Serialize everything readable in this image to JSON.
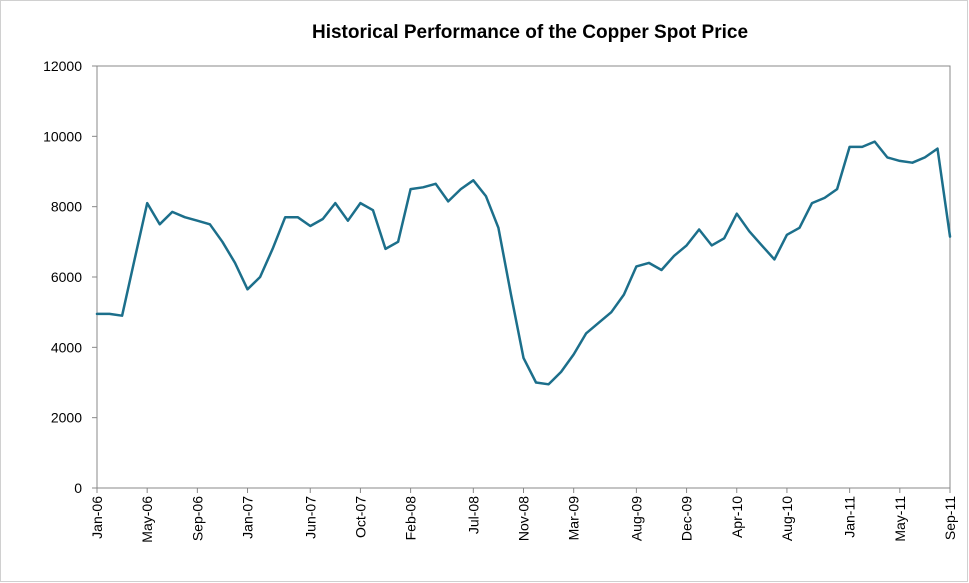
{
  "chart_data": {
    "type": "line",
    "title": "Historical Performance of the Copper Spot Price",
    "categories": [
      "Jan-06",
      null,
      null,
      null,
      "May-06",
      null,
      null,
      null,
      "Sep-06",
      null,
      null,
      null,
      "Jan-07",
      null,
      null,
      null,
      null,
      "Jun-07",
      null,
      null,
      null,
      "Oct-07",
      null,
      null,
      null,
      "Feb-08",
      null,
      null,
      null,
      null,
      "Jul-08",
      null,
      null,
      null,
      "Nov-08",
      null,
      null,
      null,
      "Mar-09",
      null,
      null,
      null,
      null,
      "Aug-09",
      null,
      null,
      null,
      "Dec-09",
      null,
      null,
      null,
      "Apr-10",
      null,
      null,
      null,
      "Aug-10",
      null,
      null,
      null,
      null,
      "Jan-11",
      null,
      null,
      null,
      "May-11",
      null,
      null,
      null,
      "Sep-11"
    ],
    "series": [
      {
        "name": "Copper Spot Price",
        "color": "#1c6f8b",
        "values": [
          4950,
          4950,
          4900,
          6500,
          8100,
          7500,
          7850,
          7700,
          7600,
          7500,
          7000,
          6400,
          5650,
          6000,
          6800,
          7700,
          7700,
          7450,
          7650,
          8100,
          7600,
          8100,
          7900,
          6800,
          7000,
          8500,
          8550,
          8650,
          8150,
          8500,
          8750,
          8300,
          7400,
          5500,
          3700,
          3000,
          2950,
          3300,
          3800,
          4400,
          4700,
          5000,
          5500,
          6300,
          6400,
          6200,
          6600,
          6900,
          7350,
          6900,
          7100,
          7800,
          7300,
          6900,
          6500,
          7200,
          7400,
          8100,
          8250,
          8500,
          9700,
          9700,
          9850,
          9400,
          9300,
          9250,
          9400,
          9650,
          7150
        ]
      }
    ],
    "ylim": [
      0,
      12000
    ],
    "yticks": [
      0,
      2000,
      4000,
      6000,
      8000,
      10000,
      12000
    ]
  }
}
